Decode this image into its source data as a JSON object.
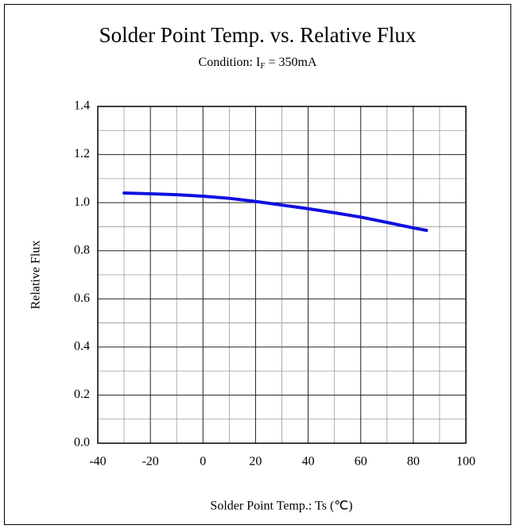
{
  "chart_data": {
    "type": "line",
    "title": "Solder Point Temp. vs. Relative Flux",
    "subtitle_parts": [
      "Condition: I",
      "F",
      " = 350mA"
    ],
    "x_label": "Solder Point Temp.: Ts (℃)",
    "y_label": "Relative Flux",
    "x": [
      -30,
      -20,
      -10,
      0,
      10,
      20,
      30,
      40,
      50,
      60,
      70,
      80,
      85
    ],
    "series": [
      {
        "name": "Relative Flux",
        "color": "#1010e0",
        "values": [
          1.04,
          1.037,
          1.033,
          1.027,
          1.018,
          1.005,
          0.99,
          0.975,
          0.958,
          0.94,
          0.918,
          0.895,
          0.885
        ]
      }
    ],
    "xlim": [
      -40,
      100
    ],
    "xticks": [
      -40,
      -20,
      0,
      20,
      40,
      60,
      80,
      100
    ],
    "ylim": [
      0,
      1.4
    ],
    "yticks": [
      {
        "value": 0,
        "label": "0.0"
      },
      0.2,
      0.4,
      0.6,
      0.8,
      {
        "value": 1,
        "label": "1.0"
      },
      1.2,
      1.4
    ],
    "grid": true
  }
}
